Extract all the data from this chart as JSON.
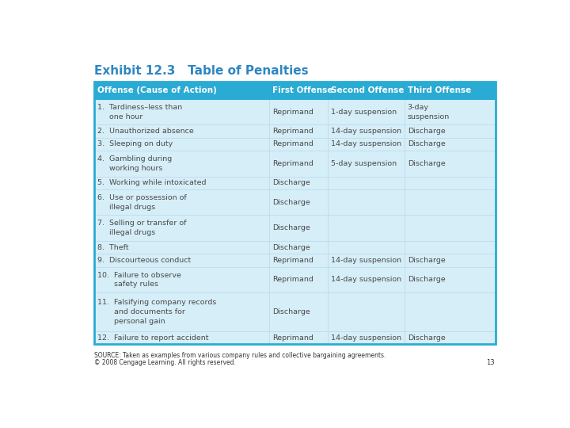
{
  "title": "Exhibit 12.3   Table of Penalties",
  "title_color": "#2E86C1",
  "title_fontsize": 11,
  "header_bg": "#29ABD4",
  "header_text_color": "#FFFFFF",
  "table_bg": "#D6EEF8",
  "table_border_color": "#29ABD4",
  "body_text_color": "#4A4A4A",
  "source_text": "SOURCE: Taken as examples from various company rules and collective bargaining agreements.",
  "copyright_text": "© 2008 Cengage Learning. All rights reserved.",
  "page_number": "13",
  "col_headers": [
    "Offense (Cause of Action)",
    "First Offense",
    "Second Offense",
    "Third Offense"
  ],
  "col_header_fontsize": 7.5,
  "rows": [
    {
      "offense": "1.  Tardiness–less than\n     one hour",
      "first": "Reprimand",
      "second": "1-day suspension",
      "third": "3-day\nsuspension",
      "lines": 2
    },
    {
      "offense": "2.  Unauthorized absence",
      "first": "Reprimand",
      "second": "14-day suspension",
      "third": "Discharge",
      "lines": 1
    },
    {
      "offense": "3.  Sleeping on duty",
      "first": "Reprimand",
      "second": "14-day suspension",
      "third": "Discharge",
      "lines": 1
    },
    {
      "offense": "4.  Gambling during\n     working hours",
      "first": "Reprimand",
      "second": "5-day suspension",
      "third": "Discharge",
      "lines": 2
    },
    {
      "offense": "5.  Working while intoxicated",
      "first": "Discharge",
      "second": "",
      "third": "",
      "lines": 1
    },
    {
      "offense": "6.  Use or possession of\n     illegal drugs",
      "first": "Discharge",
      "second": "",
      "third": "",
      "lines": 2
    },
    {
      "offense": "7.  Selling or transfer of\n     illegal drugs",
      "first": "Discharge",
      "second": "",
      "third": "",
      "lines": 2
    },
    {
      "offense": "8.  Theft",
      "first": "Discharge",
      "second": "",
      "third": "",
      "lines": 1
    },
    {
      "offense": "9.  Discourteous conduct",
      "first": "Reprimand",
      "second": "14-day suspension",
      "third": "Discharge",
      "lines": 1
    },
    {
      "offense": "10.  Failure to observe\n       safety rules",
      "first": "Reprimand",
      "second": "14-day suspension",
      "third": "Discharge",
      "lines": 2
    },
    {
      "offense": "11.  Falsifying company records\n       and documents for\n       personal gain",
      "first": "Discharge",
      "second": "",
      "third": "",
      "lines": 3
    },
    {
      "offense": "12.  Failure to report accident",
      "first": "Reprimand",
      "second": "14-day suspension",
      "third": "Discharge",
      "lines": 1
    }
  ]
}
